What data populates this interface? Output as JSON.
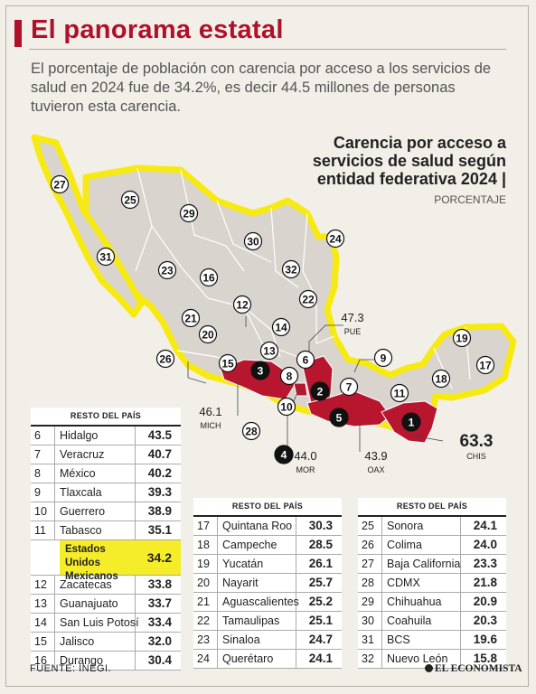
{
  "header": {
    "title": "El panorama estatal",
    "intro": "El porcentaje de población con carencia por acceso a los servicios de salud en 2024 fue de 34.2%, es decir 44.5 millones de personas tuvieron esta carencia."
  },
  "map": {
    "title": "Carencia por acceso a servicios de salud según entidad federativa 2024 |",
    "unit": "PORCENTAJE",
    "colors": {
      "highlight": "#b8162e",
      "land": "#d9d4cd",
      "outline": "#f7ea12",
      "border": "#ffffff"
    },
    "rank_labels": [
      "1",
      "2",
      "3",
      "4",
      "5",
      "6",
      "7",
      "8",
      "9",
      "10",
      "11",
      "12",
      "13",
      "14",
      "15",
      "16",
      "17",
      "18",
      "19",
      "20",
      "21",
      "22",
      "23",
      "24",
      "25",
      "26",
      "27",
      "28",
      "29",
      "30",
      "31",
      "32"
    ],
    "callouts": {
      "chis": {
        "value": "63.3",
        "name": "CHIS"
      },
      "pue": {
        "value": "47.3",
        "name": "PUE"
      },
      "mich": {
        "value": "46.1",
        "name": "MICH"
      },
      "mor": {
        "value": "44.0",
        "name": "MOR"
      },
      "oax": {
        "value": "43.9",
        "name": "OAX"
      }
    }
  },
  "chart_data": {
    "type": "table",
    "title": "Carencia por acceso a servicios de salud según entidad federativa 2024",
    "unit": "PORCENTAJE",
    "group_header": "RESTO DEL PAÍS",
    "national": {
      "label": "Estados Unidos Mexicanos",
      "value": 34.2
    },
    "top5": [
      {
        "rank": 1,
        "state": "CHIS",
        "value": 63.3
      },
      {
        "rank": 2,
        "state": "PUE",
        "value": 47.3
      },
      {
        "rank": 3,
        "state": "MICH",
        "value": 46.1
      },
      {
        "rank": 4,
        "state": "MOR",
        "value": 44.0
      },
      {
        "rank": 5,
        "state": "OAX",
        "value": 43.9
      }
    ],
    "table1": [
      {
        "rank": "6",
        "state": "Hidalgo",
        "value": "43.5"
      },
      {
        "rank": "7",
        "state": "Veracruz",
        "value": "40.7"
      },
      {
        "rank": "8",
        "state": "México",
        "value": "40.2"
      },
      {
        "rank": "9",
        "state": "Tlaxcala",
        "value": "39.3"
      },
      {
        "rank": "10",
        "state": "Guerrero",
        "value": "38.9"
      },
      {
        "rank": "11",
        "state": "Tabasco",
        "value": "35.1"
      }
    ],
    "table1_lower": [
      {
        "rank": "12",
        "state": "Zacatecas",
        "value": "33.8"
      },
      {
        "rank": "13",
        "state": "Guanajuato",
        "value": "33.7"
      },
      {
        "rank": "14",
        "state": "San Luis Potosí",
        "value": "33.4"
      },
      {
        "rank": "15",
        "state": "Jalisco",
        "value": "32.0"
      },
      {
        "rank": "16",
        "state": "Durango",
        "value": "30.4"
      }
    ],
    "table2": [
      {
        "rank": "17",
        "state": "Quintana Roo",
        "value": "30.3"
      },
      {
        "rank": "18",
        "state": "Campeche",
        "value": "28.5"
      },
      {
        "rank": "19",
        "state": "Yucatán",
        "value": "26.1"
      },
      {
        "rank": "20",
        "state": "Nayarit",
        "value": "25.7"
      },
      {
        "rank": "21",
        "state": "Aguascalientes",
        "value": "25.2"
      },
      {
        "rank": "22",
        "state": "Tamaulipas",
        "value": "25.1"
      },
      {
        "rank": "23",
        "state": "Sinaloa",
        "value": "24.7"
      },
      {
        "rank": "24",
        "state": "Querétaro",
        "value": "24.1"
      }
    ],
    "table3": [
      {
        "rank": "25",
        "state": "Sonora",
        "value": "24.1"
      },
      {
        "rank": "26",
        "state": "Colima",
        "value": "24.0"
      },
      {
        "rank": "27",
        "state": "Baja California",
        "value": "23.3"
      },
      {
        "rank": "28",
        "state": "CDMX",
        "value": "21.8"
      },
      {
        "rank": "29",
        "state": "Chihuahua",
        "value": "20.9"
      },
      {
        "rank": "30",
        "state": "Coahuila",
        "value": "20.3"
      },
      {
        "rank": "31",
        "state": "BCS",
        "value": "19.6"
      },
      {
        "rank": "32",
        "state": "Nuevo León",
        "value": "15.8"
      }
    ]
  },
  "footer": {
    "source": "FUENTE: INEGI.",
    "logo": "EL ECONOMISTA"
  }
}
